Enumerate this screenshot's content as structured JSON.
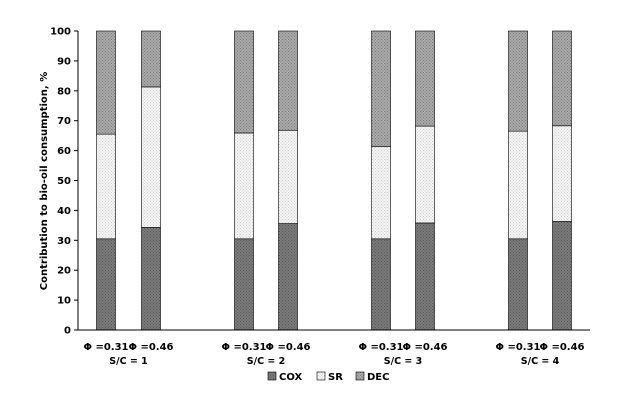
{
  "chart_data": {
    "type": "bar",
    "stacked": true,
    "percent_stacked": true,
    "categories": [
      "Φ =0.31",
      "Φ =0.46",
      "Φ =0.31",
      "Φ =0.46",
      "Φ =0.31",
      "Φ =0.46",
      "Φ =0.31",
      "Φ =0.46"
    ],
    "groups": [
      {
        "label": "S/C = 1",
        "categories": [
          0,
          1
        ]
      },
      {
        "label": "S/C = 2",
        "categories": [
          2,
          3
        ]
      },
      {
        "label": "S/C = 3",
        "categories": [
          4,
          5
        ]
      },
      {
        "label": "S/C = 4",
        "categories": [
          6,
          7
        ]
      }
    ],
    "series": [
      {
        "name": "COX",
        "color": "#7f7f7f",
        "pattern": "dots",
        "values": [
          30.5,
          34.3,
          30.5,
          35.6,
          30.5,
          35.8,
          30.5,
          36.3
        ]
      },
      {
        "name": "SR",
        "color": "#f2f2f2",
        "pattern": "light-dots",
        "values": [
          35.0,
          47.0,
          35.4,
          31.2,
          30.8,
          32.4,
          36.0,
          32.0
        ]
      },
      {
        "name": "DEC",
        "color": "#a6a6a6",
        "pattern": "dense-dots",
        "values": [
          34.5,
          18.7,
          34.1,
          33.2,
          38.7,
          31.8,
          33.5,
          31.7
        ]
      }
    ],
    "title": "",
    "xlabel": "",
    "ylabel": "Contribution to bio-oil consumption, %",
    "ylim": [
      0,
      100
    ],
    "yticks": [
      0,
      10,
      20,
      30,
      40,
      50,
      60,
      70,
      80,
      90,
      100
    ],
    "grid": false,
    "legend": "bottom"
  }
}
